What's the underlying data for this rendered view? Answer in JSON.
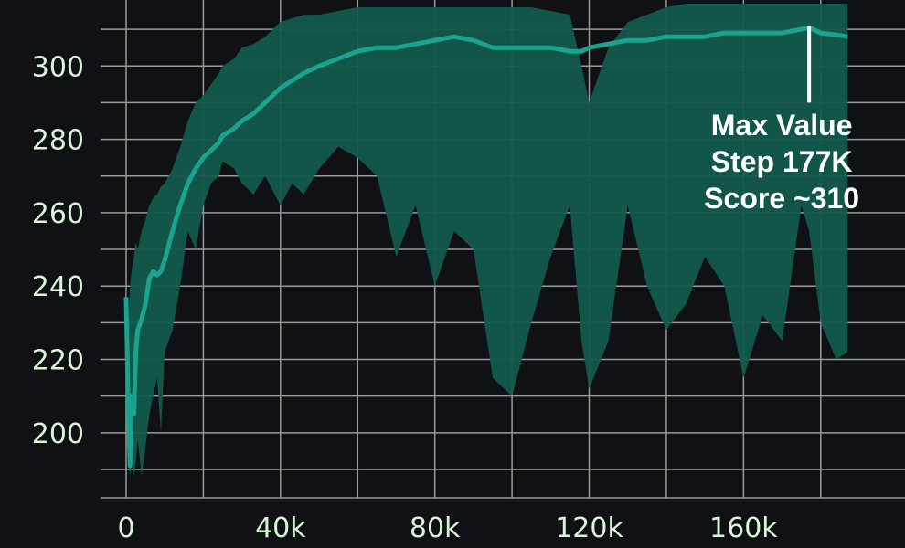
{
  "chart_data": {
    "type": "line",
    "title": "",
    "xlabel": "",
    "ylabel": "",
    "xlim": [
      0,
      190000
    ],
    "ylim": [
      188,
      318
    ],
    "x_ticks": [
      {
        "value": 0,
        "label": "0"
      },
      {
        "value": 40000,
        "label": "40k"
      },
      {
        "value": 80000,
        "label": "80k"
      },
      {
        "value": 120000,
        "label": "120k"
      },
      {
        "value": 160000,
        "label": "160k"
      }
    ],
    "y_ticks": [
      {
        "value": 200,
        "label": "200"
      },
      {
        "value": 220,
        "label": "220"
      },
      {
        "value": 240,
        "label": "240"
      },
      {
        "value": 260,
        "label": "260"
      },
      {
        "value": 280,
        "label": "280"
      },
      {
        "value": 300,
        "label": "300"
      }
    ],
    "grid": true,
    "colors": {
      "background": "#101114",
      "grid": "#9a9a9a",
      "line": "#1aa38f",
      "band": "#135a4c",
      "tick_text": "#d8f5d8",
      "annotation": "#ffffff"
    },
    "series": [
      {
        "x": [
          0,
          500,
          1000,
          1500,
          2000,
          2500,
          3000,
          4000,
          5000,
          6000,
          7000,
          8000,
          9000,
          10000,
          12000,
          14000,
          16000,
          18000,
          20000,
          22000,
          24000,
          25000,
          28000,
          30000,
          33000,
          36000,
          40000,
          43000,
          46000,
          50000,
          55000,
          60000,
          65000,
          70000,
          75000,
          80000,
          85000,
          90000,
          95000,
          100000,
          105000,
          110000,
          115000,
          118000,
          120000,
          125000,
          130000,
          135000,
          140000,
          145000,
          150000,
          155000,
          160000,
          165000,
          170000,
          175000,
          177000,
          180000,
          184000,
          187000
        ],
        "y": [
          237,
          210,
          191,
          210,
          205,
          222,
          228,
          231,
          235,
          242,
          244,
          243,
          244,
          247,
          255,
          262,
          268,
          272,
          275,
          277,
          279,
          281,
          283,
          285,
          287,
          290,
          294,
          296,
          298,
          300,
          302,
          304,
          305,
          305,
          306,
          307,
          308,
          307,
          305,
          305,
          305,
          305,
          304,
          304,
          305,
          306,
          307,
          307,
          308,
          308,
          308,
          309,
          309,
          309,
          309,
          310,
          310.5,
          309,
          308.5,
          308
        ],
        "band_low": [
          237,
          205,
          188,
          192,
          188,
          192,
          198,
          188,
          196,
          205,
          210,
          215,
          200,
          222,
          228,
          240,
          255,
          250,
          262,
          268,
          270,
          274,
          272,
          268,
          265,
          270,
          262,
          268,
          265,
          272,
          278,
          275,
          270,
          248,
          262,
          240,
          255,
          250,
          215,
          210,
          230,
          248,
          262,
          225,
          212,
          225,
          262,
          240,
          228,
          235,
          248,
          240,
          215,
          232,
          225,
          262,
          255,
          230,
          220,
          222
        ],
        "band_high": [
          240,
          225,
          240,
          245,
          248,
          252,
          250,
          255,
          258,
          262,
          264,
          265,
          267,
          268,
          272,
          278,
          285,
          290,
          292,
          295,
          298,
          300,
          302,
          305,
          306,
          308,
          312,
          313,
          314,
          314,
          315,
          316,
          316,
          316,
          316,
          316,
          316,
          316,
          316,
          316,
          316,
          315,
          314,
          300,
          290,
          305,
          312,
          314,
          316,
          317,
          317,
          317,
          317,
          317,
          317,
          317,
          317,
          317,
          317,
          317
        ]
      }
    ],
    "annotation": {
      "x": 177000,
      "y_from": 290,
      "y_to": 311,
      "lines": [
        "Max Value",
        "Step 177K",
        "Score ~310"
      ]
    }
  }
}
